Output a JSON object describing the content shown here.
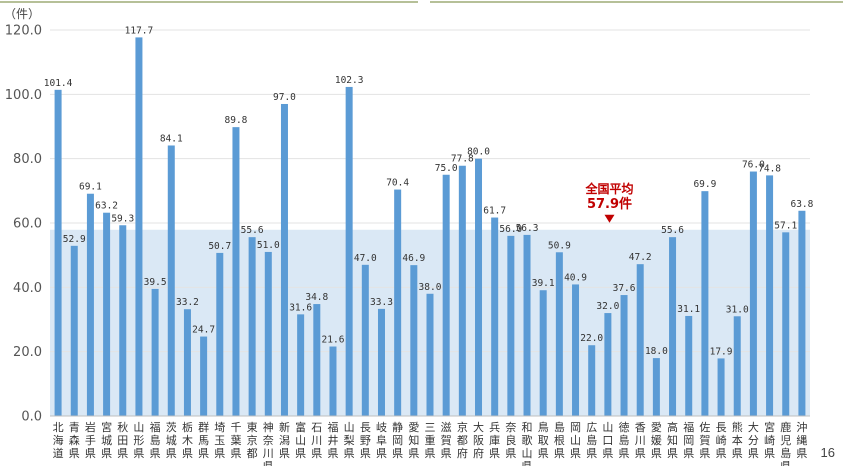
{
  "page_number": "16",
  "chart_data": {
    "type": "bar",
    "title": "",
    "xlabel": "",
    "ylabel": "（件）",
    "ylim": [
      0,
      120
    ],
    "yticks": [
      "0.0",
      "20.0",
      "40.0",
      "60.0",
      "80.0",
      "100.0",
      "120.0"
    ],
    "bar_color": "#5b9bd5",
    "average": {
      "value": 57.9,
      "label_line1": "全国平均",
      "label_line2": "57.9件",
      "band_color": "#dae8f5",
      "label_color": "#c00000"
    },
    "categories": [
      "北海道",
      "青森県",
      "岩手県",
      "宮城県",
      "秋田県",
      "山形県",
      "福島県",
      "茨城県",
      "栃木県",
      "群馬県",
      "埼玉県",
      "千葉県",
      "東京都",
      "神奈川県",
      "新潟県",
      "富山県",
      "石川県",
      "福井県",
      "山梨県",
      "長野県",
      "岐阜県",
      "静岡県",
      "愛知県",
      "三重県",
      "滋賀県",
      "京都府",
      "大阪府",
      "兵庫県",
      "奈良県",
      "和歌山県",
      "鳥取県",
      "島根県",
      "岡山県",
      "広島県",
      "山口県",
      "徳島県",
      "香川県",
      "愛媛県",
      "高知県",
      "福岡県",
      "佐賀県",
      "長崎県",
      "熊本県",
      "大分県",
      "宮崎県",
      "鹿児島県",
      "沖縄県"
    ],
    "values": [
      101.4,
      52.9,
      69.1,
      63.2,
      59.3,
      117.7,
      39.5,
      84.1,
      33.2,
      24.7,
      50.7,
      89.8,
      55.6,
      51.0,
      97.0,
      31.6,
      34.8,
      21.6,
      102.3,
      47.0,
      33.3,
      70.4,
      46.9,
      38.0,
      75.0,
      77.8,
      80.0,
      61.7,
      56.0,
      56.3,
      39.1,
      50.9,
      40.9,
      22.0,
      32.0,
      37.6,
      47.2,
      18.0,
      55.6,
      31.1,
      69.9,
      17.9,
      31.0,
      76.0,
      74.8,
      57.1,
      63.8
    ],
    "value_labels": [
      "101.4",
      "52.9",
      "69.1",
      "63.2",
      "59.3",
      "117.7",
      "39.5",
      "84.1",
      "33.2",
      "24.7",
      "50.7",
      "89.8",
      "55.6",
      "51.0",
      "97.0",
      "31.6",
      "34.8",
      "21.6",
      "102.3",
      "47.0",
      "33.3",
      "70.4",
      "46.9",
      "38.0",
      "75.0",
      "77.8",
      "80.0",
      "61.7",
      "56.0",
      "56.3",
      "39.1",
      "50.9",
      "40.9",
      "22.0",
      "32.0",
      "37.6",
      "47.2",
      "18.0",
      "55.6",
      "31.1",
      "69.9",
      "17.9",
      "31.0",
      "76.0",
      "74.8",
      "57.1",
      "63.8"
    ]
  }
}
